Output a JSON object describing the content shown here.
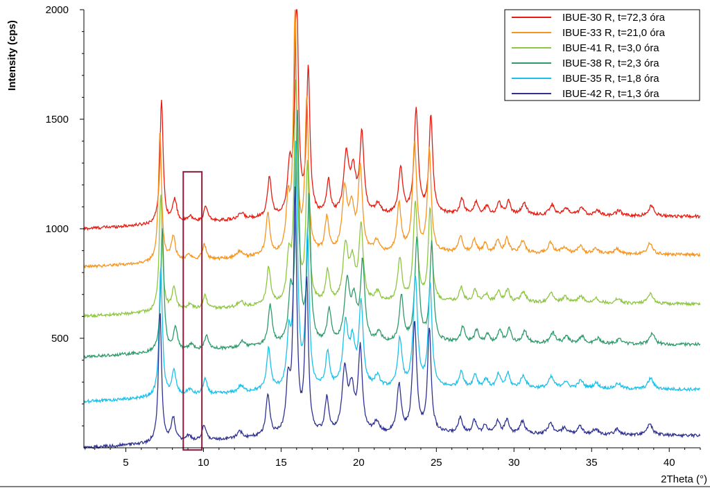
{
  "chart_data": {
    "type": "line",
    "title": "",
    "xlabel": "2Theta (°)",
    "ylabel": "Intensity (cps)",
    "xlim": [
      2.3,
      42
    ],
    "ylim": [
      0,
      2000
    ],
    "x_ticks": [
      "5",
      "10",
      "15",
      "20",
      "25",
      "30",
      "35",
      "40"
    ],
    "y_ticks": [
      "500",
      "1000",
      "1500",
      "2000"
    ],
    "legend_position": "top-right",
    "grid": false,
    "highlight_box": {
      "x_range": [
        8.7,
        9.9
      ],
      "y_range": [
        -10,
        1260
      ],
      "color": "#8b1a3a"
    },
    "peaks": [
      {
        "pos": 7.25,
        "h": 600,
        "w": 0.12
      },
      {
        "pos": 8.1,
        "h": 110,
        "w": 0.16
      },
      {
        "pos": 9.1,
        "h": 25,
        "w": 0.2
      },
      {
        "pos": 10.1,
        "h": 70,
        "w": 0.15
      },
      {
        "pos": 12.4,
        "h": 30,
        "w": 0.2
      },
      {
        "pos": 14.2,
        "h": 190,
        "w": 0.15
      },
      {
        "pos": 15.5,
        "h": 220,
        "w": 0.15
      },
      {
        "pos": 15.95,
        "h": 1100,
        "w": 0.13
      },
      {
        "pos": 16.7,
        "h": 700,
        "w": 0.13
      },
      {
        "pos": 18.0,
        "h": 160,
        "w": 0.15
      },
      {
        "pos": 19.15,
        "h": 280,
        "w": 0.2
      },
      {
        "pos": 19.6,
        "h": 190,
        "w": 0.2
      },
      {
        "pos": 20.15,
        "h": 380,
        "w": 0.16
      },
      {
        "pos": 21.2,
        "h": 50,
        "w": 0.2
      },
      {
        "pos": 22.65,
        "h": 220,
        "w": 0.16
      },
      {
        "pos": 23.65,
        "h": 500,
        "w": 0.16
      },
      {
        "pos": 24.6,
        "h": 470,
        "w": 0.14
      },
      {
        "pos": 26.6,
        "h": 75,
        "w": 0.15
      },
      {
        "pos": 27.5,
        "h": 60,
        "w": 0.15
      },
      {
        "pos": 28.2,
        "h": 40,
        "w": 0.15
      },
      {
        "pos": 29.0,
        "h": 60,
        "w": 0.15
      },
      {
        "pos": 29.6,
        "h": 65,
        "w": 0.15
      },
      {
        "pos": 30.6,
        "h": 55,
        "w": 0.2
      },
      {
        "pos": 32.4,
        "h": 50,
        "w": 0.2
      },
      {
        "pos": 33.3,
        "h": 30,
        "w": 0.2
      },
      {
        "pos": 34.3,
        "h": 35,
        "w": 0.2
      },
      {
        "pos": 35.3,
        "h": 25,
        "w": 0.2
      },
      {
        "pos": 36.7,
        "h": 25,
        "w": 0.2
      },
      {
        "pos": 38.8,
        "h": 50,
        "w": 0.2
      }
    ],
    "series": [
      {
        "name": "IBUE-30 R, t=72,3 óra",
        "color": "#e8190f",
        "offset": 1000,
        "scale": 0.95,
        "shift": 0.05
      },
      {
        "name": "IBUE-33 R, t=21,0 óra",
        "color": "#f7941d",
        "offset": 825,
        "scale": 1.0,
        "shift": -0.05
      },
      {
        "name": "IBUE-41 R, t=3,0 óra",
        "color": "#8dc63f",
        "offset": 600,
        "scale": 0.9,
        "shift": 0.0
      },
      {
        "name": "IBUE-38 R, t=2,3 óra",
        "color": "#2e9a6a",
        "offset": 415,
        "scale": 0.95,
        "shift": 0.1
      },
      {
        "name": "IBUE-35 R, t=1,8 óra",
        "color": "#1bc0ea",
        "offset": 210,
        "scale": 1.0,
        "shift": 0.0
      },
      {
        "name": "IBUE-42 R, t=1,3 óra",
        "color": "#2e3192",
        "offset": 0,
        "scale": 1.0,
        "shift": -0.05
      }
    ]
  }
}
